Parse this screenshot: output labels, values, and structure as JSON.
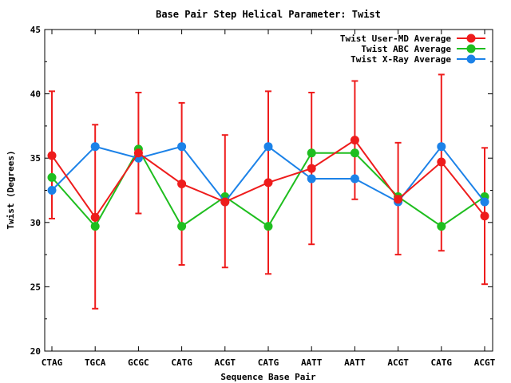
{
  "chart_data": {
    "type": "line",
    "title": "Base Pair Step Helical Parameter: Twist",
    "xlabel": "Sequence Base Pair",
    "ylabel": "Twist (Degrees)",
    "categories": [
      "CTAG",
      "TGCA",
      "GCGC",
      "CATG",
      "ACGT",
      "CATG",
      "AATT",
      "AATT",
      "ACGT",
      "CATG",
      "ACGT"
    ],
    "ylim": [
      20,
      45
    ],
    "yticks": [
      20,
      25,
      30,
      35,
      40,
      45
    ],
    "grid": false,
    "legend_position": "top-right",
    "series": [
      {
        "name": "Twist User-MD Average",
        "color": "#ee1c1c",
        "values": [
          35.2,
          30.4,
          35.4,
          33.0,
          31.6,
          33.1,
          34.2,
          36.4,
          31.8,
          34.7,
          30.5
        ],
        "error": [
          [
            30.3,
            40.2
          ],
          [
            23.3,
            37.6
          ],
          [
            30.7,
            40.1
          ],
          [
            26.7,
            39.3
          ],
          [
            26.5,
            36.8
          ],
          [
            26.0,
            40.2
          ],
          [
            28.3,
            40.1
          ],
          [
            31.8,
            41.0
          ],
          [
            27.5,
            36.2
          ],
          [
            27.8,
            41.5
          ],
          [
            25.2,
            35.8
          ]
        ]
      },
      {
        "name": "Twist ABC Average",
        "color": "#1fbe1f",
        "values": [
          33.5,
          29.7,
          35.7,
          29.7,
          32.0,
          29.7,
          35.4,
          35.4,
          32.0,
          29.7,
          32.0
        ]
      },
      {
        "name": "Twist X-Ray Average",
        "color": "#1c82e8",
        "values": [
          32.5,
          35.9,
          35.0,
          35.9,
          31.6,
          35.9,
          33.4,
          33.4,
          31.6,
          35.9,
          31.6
        ]
      }
    ]
  }
}
